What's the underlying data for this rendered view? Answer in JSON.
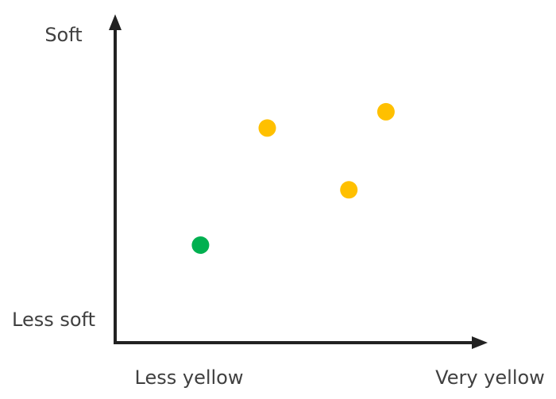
{
  "chart_data": {
    "type": "scatter",
    "y_axis_labels": {
      "high": "Soft",
      "low": "Less soft"
    },
    "x_axis_labels": {
      "low": "Less yellow",
      "high": "Very yellow"
    },
    "xlim": [
      0,
      10
    ],
    "ylim": [
      0,
      10
    ],
    "series": [
      {
        "color": "#00b050",
        "x": [
          2.3
        ],
        "y": [
          3.0
        ]
      },
      {
        "color": "#ffc000",
        "x": [
          4.1,
          6.3,
          7.3
        ],
        "y": [
          6.6,
          4.7,
          7.1
        ]
      }
    ]
  }
}
